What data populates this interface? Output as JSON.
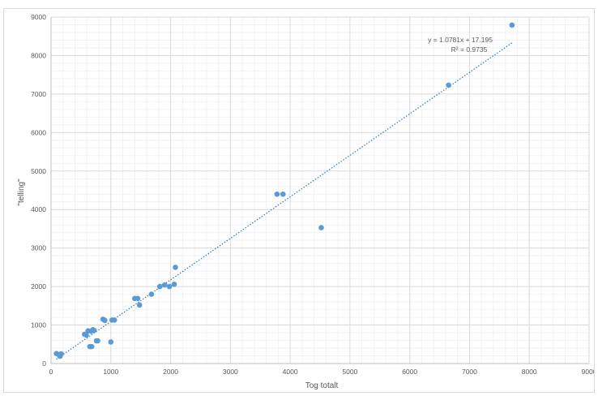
{
  "chart_data": {
    "type": "scatter",
    "title": "",
    "xlabel": "Tog totalt",
    "ylabel": "\"telling\"",
    "xlim": [
      0,
      9000
    ],
    "ylim": [
      0,
      9000
    ],
    "xticks": [
      0,
      1000,
      2000,
      3000,
      4000,
      5000,
      6000,
      7000,
      8000,
      9000
    ],
    "yticks": [
      0,
      1000,
      2000,
      3000,
      4000,
      5000,
      6000,
      7000,
      8000,
      9000
    ],
    "grid": true,
    "legend": "none",
    "point_color": "#5b9bd5",
    "trendline_color": "#2e75b6",
    "series": [
      {
        "x": [
          90,
          130,
          150,
          170,
          560,
          590,
          620,
          650,
          670,
          680,
          700,
          720,
          760,
          780,
          870,
          900,
          1000,
          1020,
          1060,
          1400,
          1450,
          1480,
          1680,
          1820,
          1900,
          1980,
          2060,
          2080,
          3780,
          3880,
          4520,
          6650,
          7710
        ],
        "y": [
          260,
          230,
          190,
          250,
          760,
          740,
          850,
          440,
          840,
          440,
          880,
          860,
          590,
          590,
          1150,
          1120,
          560,
          1130,
          1130,
          1690,
          1690,
          1520,
          1800,
          2000,
          2040,
          2000,
          2060,
          2500,
          4400,
          4400,
          3530,
          7230,
          8790
        ]
      }
    ],
    "trendline": {
      "type": "linear",
      "slope": 1.0781,
      "intercept": 17.195,
      "x_range": [
        90,
        7710
      ],
      "equation": "y = 1.0781x + 17.195",
      "r2": "R² = 0.9735"
    }
  }
}
